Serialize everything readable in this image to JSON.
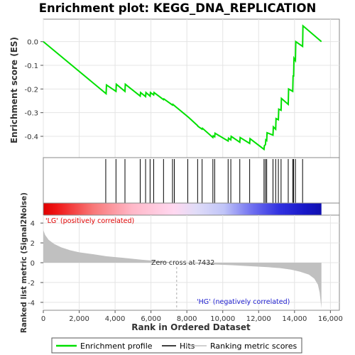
{
  "chart_data": {
    "type": "line",
    "title": "Enrichment plot: KEGG_DNA_REPLICATION",
    "es_panel": {
      "ylabel": "Enrichment score (ES)",
      "ylim": [
        -0.49,
        0.095
      ],
      "yticks": [
        0.0,
        -0.1,
        -0.2,
        -0.3,
        -0.4
      ],
      "ytick_labels": [
        "0.0",
        "-0.1",
        "-0.2",
        "-0.3",
        "-0.4"
      ],
      "grid": true,
      "series_name": "Enrichment profile",
      "line_color": "#00e000",
      "points": [
        [
          0,
          0.0
        ],
        [
          3500,
          -0.22
        ],
        [
          3520,
          -0.183
        ],
        [
          4050,
          -0.21
        ],
        [
          4070,
          -0.18
        ],
        [
          4550,
          -0.21
        ],
        [
          4570,
          -0.18
        ],
        [
          5400,
          -0.23
        ],
        [
          5420,
          -0.215
        ],
        [
          5700,
          -0.232
        ],
        [
          5720,
          -0.215
        ],
        [
          5950,
          -0.23
        ],
        [
          5970,
          -0.215
        ],
        [
          6150,
          -0.225
        ],
        [
          6170,
          -0.215
        ],
        [
          6700,
          -0.245
        ],
        [
          6720,
          -0.242
        ],
        [
          7200,
          -0.268
        ],
        [
          7220,
          -0.265
        ],
        [
          7300,
          -0.27
        ],
        [
          8100,
          -0.32
        ],
        [
          8600,
          -0.355
        ],
        [
          8620,
          -0.358
        ],
        [
          8850,
          -0.37
        ],
        [
          8870,
          -0.366
        ],
        [
          9450,
          -0.405
        ],
        [
          9470,
          -0.398
        ],
        [
          9550,
          -0.402
        ],
        [
          9570,
          -0.387
        ],
        [
          10300,
          -0.42
        ],
        [
          10320,
          -0.408
        ],
        [
          10450,
          -0.415
        ],
        [
          10470,
          -0.4
        ],
        [
          10950,
          -0.425
        ],
        [
          10970,
          -0.405
        ],
        [
          11500,
          -0.43
        ],
        [
          11520,
          -0.41
        ],
        [
          12300,
          -0.455
        ],
        [
          12320,
          -0.44
        ],
        [
          12380,
          -0.435
        ],
        [
          12400,
          -0.415
        ],
        [
          12450,
          -0.418
        ],
        [
          12470,
          -0.385
        ],
        [
          12800,
          -0.395
        ],
        [
          12820,
          -0.36
        ],
        [
          12950,
          -0.37
        ],
        [
          12970,
          -0.325
        ],
        [
          13100,
          -0.33
        ],
        [
          13120,
          -0.285
        ],
        [
          13250,
          -0.29
        ],
        [
          13270,
          -0.24
        ],
        [
          13650,
          -0.265
        ],
        [
          13670,
          -0.2
        ],
        [
          13900,
          -0.21
        ],
        [
          13920,
          -0.145
        ],
        [
          13950,
          -0.145
        ],
        [
          13970,
          -0.07
        ],
        [
          14050,
          -0.08
        ],
        [
          14070,
          0.0
        ],
        [
          14450,
          -0.02
        ],
        [
          14470,
          0.067
        ],
        [
          15500,
          0.0
        ]
      ]
    },
    "hits_panel": {
      "hit_positions": [
        3480,
        4050,
        4550,
        5400,
        5700,
        5950,
        6150,
        6700,
        7200,
        7300,
        8050,
        8600,
        8850,
        9450,
        9550,
        10300,
        10450,
        10950,
        11500,
        12300,
        12380,
        12450,
        12800,
        12950,
        13100,
        13250,
        13650,
        13900,
        13950,
        14050,
        14450
      ]
    },
    "metric_panel": {
      "ylabel": "Ranked list metric (Signal2Noise)",
      "ylim": [
        -4.8,
        4.8
      ],
      "yticks": [
        4,
        2,
        0,
        -2,
        -4
      ],
      "ytick_labels": [
        "4",
        "2",
        "0",
        "-2",
        "-4"
      ],
      "fill_color": "#c0c0c0",
      "zero_cross": 7432,
      "metric_curve": [
        [
          0,
          3.3
        ],
        [
          100,
          2.8
        ],
        [
          300,
          2.3
        ],
        [
          600,
          1.9
        ],
        [
          1000,
          1.55
        ],
        [
          1500,
          1.25
        ],
        [
          2000,
          1.05
        ],
        [
          2800,
          0.85
        ],
        [
          3500,
          0.65
        ],
        [
          4500,
          0.48
        ],
        [
          5500,
          0.3
        ],
        [
          6500,
          0.15
        ],
        [
          7432,
          0.0
        ],
        [
          8500,
          -0.1
        ],
        [
          9500,
          -0.18
        ],
        [
          10500,
          -0.25
        ],
        [
          11500,
          -0.35
        ],
        [
          12500,
          -0.45
        ],
        [
          13200,
          -0.55
        ],
        [
          13800,
          -0.7
        ],
        [
          14300,
          -0.9
        ],
        [
          14800,
          -1.2
        ],
        [
          15100,
          -1.6
        ],
        [
          15300,
          -2.2
        ],
        [
          15400,
          -3.0
        ],
        [
          15500,
          -4.6
        ]
      ],
      "annotations": {
        "positive": "'LG' (positively correlated)",
        "negative": "'HG' (negatively correlated)",
        "zero_cross": "Zero cross at 7432"
      }
    },
    "xlabel": "Rank in Ordered Dataset",
    "xlim": [
      0,
      16500
    ],
    "xticks": [
      0,
      2000,
      4000,
      6000,
      8000,
      10000,
      12000,
      14000,
      16000
    ],
    "xtick_labels": [
      "0",
      "2,000",
      "4,000",
      "6,000",
      "8,000",
      "10,000",
      "12,000",
      "14,000",
      "16,000"
    ],
    "n_ranked": 15500,
    "legend": {
      "placement": "bottom",
      "entries": [
        {
          "label": "Enrichment profile",
          "color": "#00e000"
        },
        {
          "label": "Hits",
          "color": "#000000"
        },
        {
          "label": "Ranking metric scores",
          "color": "#c0c0c0"
        }
      ]
    }
  }
}
